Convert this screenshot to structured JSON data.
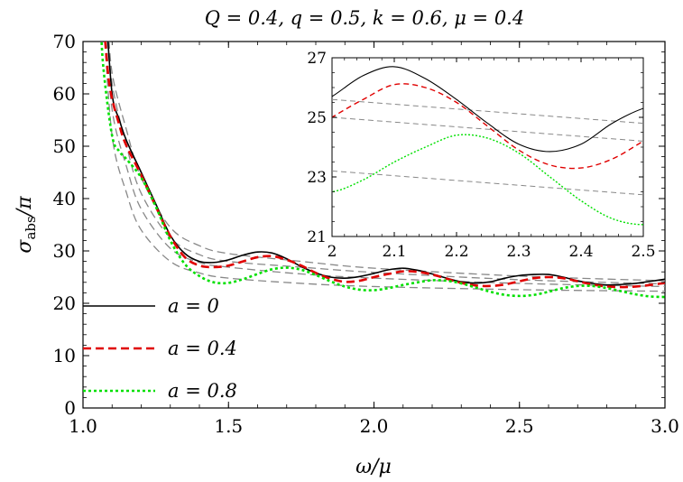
{
  "chart_data": {
    "type": "line",
    "title": "Q = 0.4, q = 0.5, k = 0.6, μ = 0.4",
    "xlabel": "ω/μ",
    "ylabel_main": "σ",
    "ylabel_sub": "abs",
    "ylabel_tail": "/π",
    "xlim": [
      1.0,
      3.0
    ],
    "ylim": [
      0,
      70
    ],
    "xticks": [
      1.0,
      1.5,
      2.0,
      2.5,
      3.0
    ],
    "xtick_labels": [
      "1.0",
      "1.5",
      "2.0",
      "2.5",
      "3.0"
    ],
    "yticks": [
      0,
      10,
      20,
      30,
      40,
      50,
      60,
      70
    ],
    "ytick_labels": [
      "0",
      "10",
      "20",
      "30",
      "40",
      "50",
      "60",
      "70"
    ],
    "legend_position": "bottom-left",
    "series": [
      {
        "name": "a = 0",
        "color": "#000000",
        "style": "solid",
        "points": [
          [
            1.08,
            75
          ],
          [
            1.1,
            60
          ],
          [
            1.125,
            55
          ],
          [
            1.15,
            51
          ],
          [
            1.2,
            45
          ],
          [
            1.25,
            39
          ],
          [
            1.3,
            33
          ],
          [
            1.35,
            29.5
          ],
          [
            1.4,
            28
          ],
          [
            1.45,
            27.8
          ],
          [
            1.5,
            28.3
          ],
          [
            1.55,
            29.2
          ],
          [
            1.6,
            29.8
          ],
          [
            1.65,
            29.6
          ],
          [
            1.7,
            28.5
          ],
          [
            1.75,
            27
          ],
          [
            1.8,
            25.8
          ],
          [
            1.85,
            25
          ],
          [
            1.9,
            24.8
          ],
          [
            1.95,
            25.1
          ],
          [
            2.0,
            25.7
          ],
          [
            2.05,
            26.4
          ],
          [
            2.1,
            26.7
          ],
          [
            2.15,
            26.3
          ],
          [
            2.2,
            25.6
          ],
          [
            2.25,
            24.8
          ],
          [
            2.3,
            24.1
          ],
          [
            2.35,
            23.85
          ],
          [
            2.4,
            24.1
          ],
          [
            2.45,
            24.8
          ],
          [
            2.5,
            25.3
          ],
          [
            2.55,
            25.5
          ],
          [
            2.6,
            25.5
          ],
          [
            2.65,
            25.0
          ],
          [
            2.7,
            24.3
          ],
          [
            2.75,
            23.8
          ],
          [
            2.8,
            23.5
          ],
          [
            2.85,
            23.6
          ],
          [
            2.9,
            23.8
          ],
          [
            2.95,
            24.2
          ],
          [
            3.0,
            24.6
          ]
        ]
      },
      {
        "name": "a = 0.4",
        "color": "#e00000",
        "style": "dashed",
        "points": [
          [
            1.07,
            75
          ],
          [
            1.09,
            62
          ],
          [
            1.125,
            54
          ],
          [
            1.15,
            50
          ],
          [
            1.2,
            44.5
          ],
          [
            1.25,
            38.5
          ],
          [
            1.3,
            32.8
          ],
          [
            1.35,
            28.8
          ],
          [
            1.4,
            27.2
          ],
          [
            1.45,
            26.9
          ],
          [
            1.5,
            27.2
          ],
          [
            1.55,
            28.0
          ],
          [
            1.6,
            28.8
          ],
          [
            1.65,
            29.0
          ],
          [
            1.7,
            28.3
          ],
          [
            1.75,
            27.2
          ],
          [
            1.8,
            25.8
          ],
          [
            1.85,
            24.7
          ],
          [
            1.9,
            24.1
          ],
          [
            1.95,
            24.3
          ],
          [
            2.0,
            25.0
          ],
          [
            2.05,
            25.6
          ],
          [
            2.1,
            26.1
          ],
          [
            2.15,
            26.0
          ],
          [
            2.2,
            25.5
          ],
          [
            2.25,
            24.7
          ],
          [
            2.3,
            23.9
          ],
          [
            2.35,
            23.4
          ],
          [
            2.4,
            23.3
          ],
          [
            2.45,
            23.6
          ],
          [
            2.5,
            24.2
          ],
          [
            2.55,
            24.8
          ],
          [
            2.6,
            25.0
          ],
          [
            2.65,
            24.8
          ],
          [
            2.7,
            24.2
          ],
          [
            2.75,
            23.6
          ],
          [
            2.8,
            23.2
          ],
          [
            2.85,
            23.1
          ],
          [
            2.9,
            23.2
          ],
          [
            2.95,
            23.5
          ],
          [
            3.0,
            23.9
          ]
        ]
      },
      {
        "name": "a = 0.8",
        "color": "#00e000",
        "style": "dotted",
        "points": [
          [
            1.06,
            75
          ],
          [
            1.07,
            65
          ],
          [
            1.1,
            52
          ],
          [
            1.125,
            49
          ],
          [
            1.15,
            47.5
          ],
          [
            1.2,
            44
          ],
          [
            1.25,
            38.5
          ],
          [
            1.3,
            32
          ],
          [
            1.35,
            27.5
          ],
          [
            1.4,
            25.2
          ],
          [
            1.45,
            24.0
          ],
          [
            1.5,
            23.9
          ],
          [
            1.55,
            24.6
          ],
          [
            1.6,
            25.6
          ],
          [
            1.65,
            26.5
          ],
          [
            1.7,
            26.8
          ],
          [
            1.75,
            26.4
          ],
          [
            1.8,
            25.4
          ],
          [
            1.85,
            24.2
          ],
          [
            1.9,
            23.2
          ],
          [
            1.95,
            22.6
          ],
          [
            2.0,
            22.5
          ],
          [
            2.05,
            22.9
          ],
          [
            2.1,
            23.5
          ],
          [
            2.15,
            24.0
          ],
          [
            2.2,
            24.4
          ],
          [
            2.25,
            24.3
          ],
          [
            2.3,
            23.8
          ],
          [
            2.35,
            23.0
          ],
          [
            2.4,
            22.2
          ],
          [
            2.45,
            21.6
          ],
          [
            2.5,
            21.4
          ],
          [
            2.55,
            21.6
          ],
          [
            2.6,
            22.2
          ],
          [
            2.65,
            22.9
          ],
          [
            2.7,
            23.3
          ],
          [
            2.75,
            23.3
          ],
          [
            2.8,
            22.9
          ],
          [
            2.85,
            22.3
          ],
          [
            2.9,
            21.7
          ],
          [
            2.95,
            21.3
          ],
          [
            3.0,
            21.2
          ]
        ]
      }
    ],
    "reference_curves": {
      "color": "#888888",
      "style": "dashed",
      "curves": [
        [
          [
            1.085,
            75
          ],
          [
            1.1,
            64
          ],
          [
            1.15,
            53
          ],
          [
            1.2,
            44
          ],
          [
            1.3,
            34.5
          ],
          [
            1.4,
            31
          ],
          [
            1.5,
            29.5
          ],
          [
            1.75,
            28
          ],
          [
            2.0,
            26.7
          ],
          [
            2.5,
            25.2
          ],
          [
            3.0,
            24.3
          ]
        ],
        [
          [
            1.08,
            75
          ],
          [
            1.1,
            62
          ],
          [
            1.15,
            50
          ],
          [
            1.2,
            41
          ],
          [
            1.3,
            32.5
          ],
          [
            1.4,
            29.3
          ],
          [
            1.5,
            28.0
          ],
          [
            1.75,
            26.9
          ],
          [
            2.0,
            25.9
          ],
          [
            2.5,
            24.5
          ],
          [
            3.0,
            23.7
          ]
        ],
        [
          [
            1.075,
            75
          ],
          [
            1.1,
            57
          ],
          [
            1.15,
            46
          ],
          [
            1.2,
            38
          ],
          [
            1.3,
            30.5
          ],
          [
            1.4,
            27.8
          ],
          [
            1.5,
            26.9
          ],
          [
            1.75,
            25.6
          ],
          [
            2.0,
            24.8
          ],
          [
            2.5,
            23.8
          ],
          [
            3.0,
            23.2
          ]
        ],
        [
          [
            1.07,
            75
          ],
          [
            1.1,
            52
          ],
          [
            1.15,
            41
          ],
          [
            1.2,
            34
          ],
          [
            1.3,
            28
          ],
          [
            1.4,
            25.8
          ],
          [
            1.5,
            24.8
          ],
          [
            1.75,
            23.8
          ],
          [
            2.0,
            23.2
          ],
          [
            2.5,
            22.6
          ],
          [
            3.0,
            22.3
          ]
        ]
      ]
    },
    "inset": {
      "xlim": [
        2.0,
        2.5
      ],
      "ylim": [
        21,
        27
      ],
      "xticks": [
        2.0,
        2.1,
        2.2,
        2.3,
        2.4,
        2.5
      ],
      "xtick_labels": [
        "2",
        "2.1",
        "2.2",
        "2.3",
        "2.4",
        "2.5"
      ],
      "yticks": [
        21,
        23,
        25,
        27
      ],
      "ytick_labels": [
        "21",
        "23",
        "25",
        "27"
      ],
      "reference_lines": [
        [
          25.6,
          24.8
        ],
        [
          25.0,
          24.2
        ],
        [
          23.2,
          22.4
        ]
      ]
    }
  }
}
